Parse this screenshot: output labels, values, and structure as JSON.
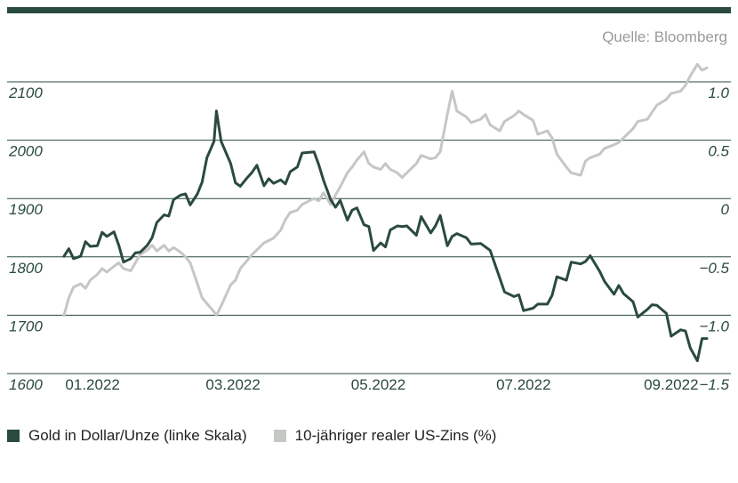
{
  "colors": {
    "gold": "#2a4a40",
    "rate": "#c5c7c4",
    "grid": "#2a4a40",
    "rule": "#2a4a40",
    "text": "#2a4a40"
  },
  "source": "Quelle: Bloomberg",
  "legend": {
    "gold": "Gold in Dollar/Unze (linke Skala)",
    "rate": "10-jähriger realer US-Zins (%)"
  },
  "chart_data": {
    "type": "line",
    "x_start": "2022-01-03",
    "x_end": "2022-09-30",
    "x_ticks": [
      {
        "date": "2022-01-15",
        "label": "01.2022"
      },
      {
        "date": "2022-03-15",
        "label": "03.2022"
      },
      {
        "date": "2022-05-15",
        "label": "05.2022"
      },
      {
        "date": "2022-07-15",
        "label": "07.2022"
      },
      {
        "date": "2022-09-15",
        "label": "09.2022"
      }
    ],
    "y_left": {
      "min": 1600,
      "max": 2100,
      "ticks": [
        "2100",
        "2000",
        "1900",
        "1800",
        "1700",
        "1600"
      ]
    },
    "y_right": {
      "min": -1.5,
      "max": 1.0,
      "ticks": [
        "1.0",
        "0.5",
        "0",
        "−0.5",
        "−1.0",
        "−1.5"
      ]
    },
    "grid": true,
    "series": [
      {
        "name": "Gold in Dollar/Unze (linke Skala)",
        "axis": "left",
        "points": [
          [
            "2022-01-03",
            1801
          ],
          [
            "2022-01-05",
            1814
          ],
          [
            "2022-01-07",
            1797
          ],
          [
            "2022-01-10",
            1801
          ],
          [
            "2022-01-12",
            1826
          ],
          [
            "2022-01-14",
            1818
          ],
          [
            "2022-01-17",
            1819
          ],
          [
            "2022-01-19",
            1842
          ],
          [
            "2022-01-21",
            1835
          ],
          [
            "2022-01-24",
            1843
          ],
          [
            "2022-01-26",
            1820
          ],
          [
            "2022-01-28",
            1791
          ],
          [
            "2022-01-31",
            1797
          ],
          [
            "2022-02-02",
            1807
          ],
          [
            "2022-02-04",
            1808
          ],
          [
            "2022-02-07",
            1820
          ],
          [
            "2022-02-09",
            1833
          ],
          [
            "2022-02-11",
            1859
          ],
          [
            "2022-02-14",
            1872
          ],
          [
            "2022-02-16",
            1870
          ],
          [
            "2022-02-18",
            1898
          ],
          [
            "2022-02-21",
            1906
          ],
          [
            "2022-02-23",
            1908
          ],
          [
            "2022-02-25",
            1889
          ],
          [
            "2022-02-28",
            1908
          ],
          [
            "2022-03-02",
            1928
          ],
          [
            "2022-03-04",
            1970
          ],
          [
            "2022-03-07",
            1998
          ],
          [
            "2022-03-08",
            2050
          ],
          [
            "2022-03-10",
            1998
          ],
          [
            "2022-03-14",
            1960
          ],
          [
            "2022-03-16",
            1927
          ],
          [
            "2022-03-18",
            1921
          ],
          [
            "2022-03-21",
            1936
          ],
          [
            "2022-03-23",
            1945
          ],
          [
            "2022-03-25",
            1957
          ],
          [
            "2022-03-28",
            1922
          ],
          [
            "2022-03-30",
            1934
          ],
          [
            "2022-04-01",
            1926
          ],
          [
            "2022-04-04",
            1932
          ],
          [
            "2022-04-06",
            1925
          ],
          [
            "2022-04-08",
            1946
          ],
          [
            "2022-04-11",
            1954
          ],
          [
            "2022-04-13",
            1978
          ],
          [
            "2022-04-18",
            1980
          ],
          [
            "2022-04-20",
            1958
          ],
          [
            "2022-04-22",
            1931
          ],
          [
            "2022-04-25",
            1898
          ],
          [
            "2022-04-27",
            1885
          ],
          [
            "2022-04-29",
            1897
          ],
          [
            "2022-05-02",
            1863
          ],
          [
            "2022-05-04",
            1880
          ],
          [
            "2022-05-06",
            1884
          ],
          [
            "2022-05-09",
            1855
          ],
          [
            "2022-05-11",
            1852
          ],
          [
            "2022-05-13",
            1811
          ],
          [
            "2022-05-16",
            1824
          ],
          [
            "2022-05-18",
            1817
          ],
          [
            "2022-05-20",
            1846
          ],
          [
            "2022-05-23",
            1853
          ],
          [
            "2022-05-25",
            1852
          ],
          [
            "2022-05-27",
            1853
          ],
          [
            "2022-05-31",
            1837
          ],
          [
            "2022-06-02",
            1869
          ],
          [
            "2022-06-06",
            1841
          ],
          [
            "2022-06-08",
            1853
          ],
          [
            "2022-06-10",
            1871
          ],
          [
            "2022-06-13",
            1819
          ],
          [
            "2022-06-15",
            1835
          ],
          [
            "2022-06-17",
            1840
          ],
          [
            "2022-06-21",
            1833
          ],
          [
            "2022-06-23",
            1822
          ],
          [
            "2022-06-27",
            1823
          ],
          [
            "2022-06-29",
            1817
          ],
          [
            "2022-07-01",
            1811
          ],
          [
            "2022-07-05",
            1764
          ],
          [
            "2022-07-07",
            1740
          ],
          [
            "2022-07-11",
            1732
          ],
          [
            "2022-07-13",
            1735
          ],
          [
            "2022-07-15",
            1708
          ],
          [
            "2022-07-19",
            1712
          ],
          [
            "2022-07-21",
            1719
          ],
          [
            "2022-07-25",
            1719
          ],
          [
            "2022-07-27",
            1734
          ],
          [
            "2022-07-29",
            1766
          ],
          [
            "2022-08-02",
            1760
          ],
          [
            "2022-08-04",
            1791
          ],
          [
            "2022-08-08",
            1788
          ],
          [
            "2022-08-10",
            1792
          ],
          [
            "2022-08-12",
            1802
          ],
          [
            "2022-08-16",
            1775
          ],
          [
            "2022-08-18",
            1758
          ],
          [
            "2022-08-22",
            1736
          ],
          [
            "2022-08-24",
            1751
          ],
          [
            "2022-08-26",
            1737
          ],
          [
            "2022-08-30",
            1723
          ],
          [
            "2022-09-01",
            1697
          ],
          [
            "2022-09-05",
            1710
          ],
          [
            "2022-09-07",
            1718
          ],
          [
            "2022-09-09",
            1717
          ],
          [
            "2022-09-13",
            1703
          ],
          [
            "2022-09-15",
            1664
          ],
          [
            "2022-09-19",
            1675
          ],
          [
            "2022-09-21",
            1673
          ],
          [
            "2022-09-23",
            1644
          ],
          [
            "2022-09-26",
            1622
          ],
          [
            "2022-09-28",
            1660
          ],
          [
            "2022-09-30",
            1660
          ]
        ]
      },
      {
        "name": "10-jähriger realer US-Zins (%)",
        "axis": "right",
        "points": [
          [
            "2022-01-03",
            -1.0
          ],
          [
            "2022-01-05",
            -0.85
          ],
          [
            "2022-01-07",
            -0.76
          ],
          [
            "2022-01-10",
            -0.73
          ],
          [
            "2022-01-12",
            -0.77
          ],
          [
            "2022-01-14",
            -0.7
          ],
          [
            "2022-01-17",
            -0.65
          ],
          [
            "2022-01-19",
            -0.6
          ],
          [
            "2022-01-21",
            -0.63
          ],
          [
            "2022-01-24",
            -0.58
          ],
          [
            "2022-01-26",
            -0.55
          ],
          [
            "2022-01-28",
            -0.6
          ],
          [
            "2022-01-31",
            -0.62
          ],
          [
            "2022-02-02",
            -0.55
          ],
          [
            "2022-02-04",
            -0.48
          ],
          [
            "2022-02-07",
            -0.44
          ],
          [
            "2022-02-09",
            -0.4
          ],
          [
            "2022-02-11",
            -0.45
          ],
          [
            "2022-02-14",
            -0.4
          ],
          [
            "2022-02-16",
            -0.45
          ],
          [
            "2022-02-18",
            -0.42
          ],
          [
            "2022-02-21",
            -0.46
          ],
          [
            "2022-02-23",
            -0.5
          ],
          [
            "2022-02-25",
            -0.55
          ],
          [
            "2022-02-28",
            -0.73
          ],
          [
            "2022-03-02",
            -0.85
          ],
          [
            "2022-03-04",
            -0.9
          ],
          [
            "2022-03-07",
            -0.97
          ],
          [
            "2022-03-08",
            -1.0
          ],
          [
            "2022-03-10",
            -0.92
          ],
          [
            "2022-03-14",
            -0.74
          ],
          [
            "2022-03-16",
            -0.7
          ],
          [
            "2022-03-18",
            -0.6
          ],
          [
            "2022-03-21",
            -0.53
          ],
          [
            "2022-03-23",
            -0.48
          ],
          [
            "2022-03-25",
            -0.44
          ],
          [
            "2022-03-28",
            -0.38
          ],
          [
            "2022-03-30",
            -0.36
          ],
          [
            "2022-04-01",
            -0.34
          ],
          [
            "2022-04-04",
            -0.27
          ],
          [
            "2022-04-06",
            -0.18
          ],
          [
            "2022-04-08",
            -0.12
          ],
          [
            "2022-04-11",
            -0.1
          ],
          [
            "2022-04-13",
            -0.05
          ],
          [
            "2022-04-18",
            0.0
          ],
          [
            "2022-04-20",
            -0.02
          ],
          [
            "2022-04-22",
            0.05
          ],
          [
            "2022-04-25",
            -0.05
          ],
          [
            "2022-04-27",
            0.03
          ],
          [
            "2022-04-29",
            0.1
          ],
          [
            "2022-05-02",
            0.22
          ],
          [
            "2022-05-04",
            0.27
          ],
          [
            "2022-05-06",
            0.33
          ],
          [
            "2022-05-09",
            0.4
          ],
          [
            "2022-05-11",
            0.3
          ],
          [
            "2022-05-13",
            0.27
          ],
          [
            "2022-05-16",
            0.25
          ],
          [
            "2022-05-18",
            0.3
          ],
          [
            "2022-05-20",
            0.25
          ],
          [
            "2022-05-23",
            0.22
          ],
          [
            "2022-05-25",
            0.18
          ],
          [
            "2022-05-27",
            0.22
          ],
          [
            "2022-05-31",
            0.3
          ],
          [
            "2022-06-02",
            0.37
          ],
          [
            "2022-06-06",
            0.34
          ],
          [
            "2022-06-08",
            0.35
          ],
          [
            "2022-06-10",
            0.4
          ],
          [
            "2022-06-13",
            0.72
          ],
          [
            "2022-06-15",
            0.92
          ],
          [
            "2022-06-17",
            0.75
          ],
          [
            "2022-06-21",
            0.7
          ],
          [
            "2022-06-23",
            0.65
          ],
          [
            "2022-06-27",
            0.68
          ],
          [
            "2022-06-29",
            0.72
          ],
          [
            "2022-07-01",
            0.63
          ],
          [
            "2022-07-05",
            0.58
          ],
          [
            "2022-07-07",
            0.66
          ],
          [
            "2022-07-11",
            0.71
          ],
          [
            "2022-07-13",
            0.75
          ],
          [
            "2022-07-15",
            0.72
          ],
          [
            "2022-07-19",
            0.67
          ],
          [
            "2022-07-21",
            0.55
          ],
          [
            "2022-07-25",
            0.58
          ],
          [
            "2022-07-27",
            0.52
          ],
          [
            "2022-07-29",
            0.38
          ],
          [
            "2022-08-02",
            0.27
          ],
          [
            "2022-08-04",
            0.22
          ],
          [
            "2022-08-08",
            0.2
          ],
          [
            "2022-08-10",
            0.32
          ],
          [
            "2022-08-12",
            0.35
          ],
          [
            "2022-08-16",
            0.38
          ],
          [
            "2022-08-18",
            0.43
          ],
          [
            "2022-08-22",
            0.46
          ],
          [
            "2022-08-24",
            0.48
          ],
          [
            "2022-08-26",
            0.52
          ],
          [
            "2022-08-30",
            0.6
          ],
          [
            "2022-09-01",
            0.66
          ],
          [
            "2022-09-05",
            0.68
          ],
          [
            "2022-09-07",
            0.74
          ],
          [
            "2022-09-09",
            0.8
          ],
          [
            "2022-09-13",
            0.85
          ],
          [
            "2022-09-15",
            0.9
          ],
          [
            "2022-09-19",
            0.92
          ],
          [
            "2022-09-21",
            0.97
          ],
          [
            "2022-09-23",
            1.05
          ],
          [
            "2022-09-26",
            1.15
          ],
          [
            "2022-09-28",
            1.1
          ],
          [
            "2022-09-30",
            1.12
          ]
        ]
      }
    ]
  }
}
